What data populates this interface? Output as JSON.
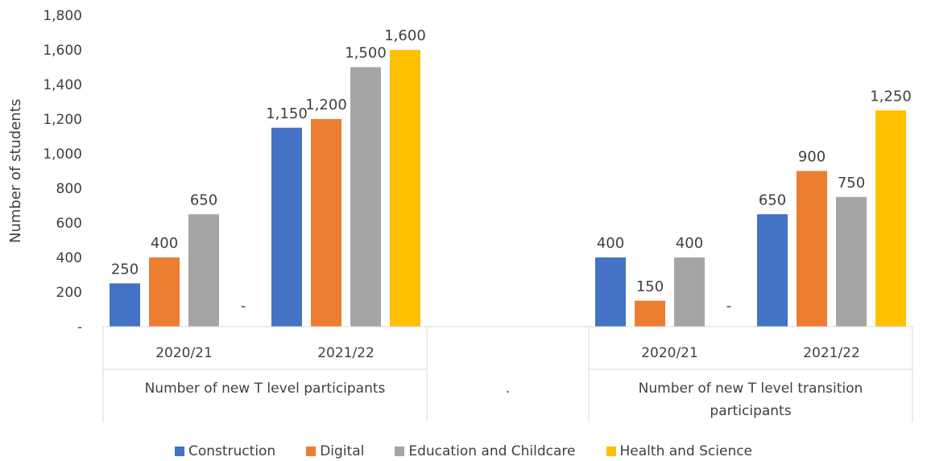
{
  "chart_data": {
    "type": "bar",
    "ylabel": "Number of students",
    "ylim": [
      0,
      1800
    ],
    "yticks": [
      0,
      200,
      400,
      600,
      800,
      1000,
      1200,
      1400,
      1600,
      1800
    ],
    "ytick_labels": [
      "-",
      "200",
      "400",
      "600",
      "800",
      "1,000",
      "1,200",
      "1,400",
      "1,600",
      "1,800"
    ],
    "group_labels": [
      "Number of new T level participants",
      ".",
      "Number of new T level transition participants"
    ],
    "categories": [
      {
        "label": "2020/21",
        "group": 0
      },
      {
        "label": "2021/22",
        "group": 0
      },
      {
        "label": "",
        "group": 1
      },
      {
        "label": "2020/21",
        "group": 2
      },
      {
        "label": "2021/22",
        "group": 2
      }
    ],
    "series": [
      {
        "name": "Construction",
        "color": "#4472C4",
        "values": [
          250,
          1150,
          null,
          400,
          650
        ],
        "labels": [
          "250",
          "1,150",
          "",
          "400",
          "650"
        ]
      },
      {
        "name": "Digital",
        "color": "#ED7D31",
        "values": [
          400,
          1200,
          null,
          150,
          900
        ],
        "labels": [
          "400",
          "1,200",
          "",
          "150",
          "900"
        ]
      },
      {
        "name": "Education and Childcare",
        "color": "#A5A5A5",
        "values": [
          650,
          1500,
          null,
          400,
          750
        ],
        "labels": [
          "650",
          "1,500",
          "",
          "400",
          "750"
        ]
      },
      {
        "name": "Health and Science",
        "color": "#FFC000",
        "values": [
          0,
          1600,
          null,
          0,
          1250
        ],
        "labels": [
          "-",
          "1,600",
          "",
          "-",
          "1,250"
        ]
      }
    ],
    "legend_position": "bottom",
    "grid": false
  }
}
